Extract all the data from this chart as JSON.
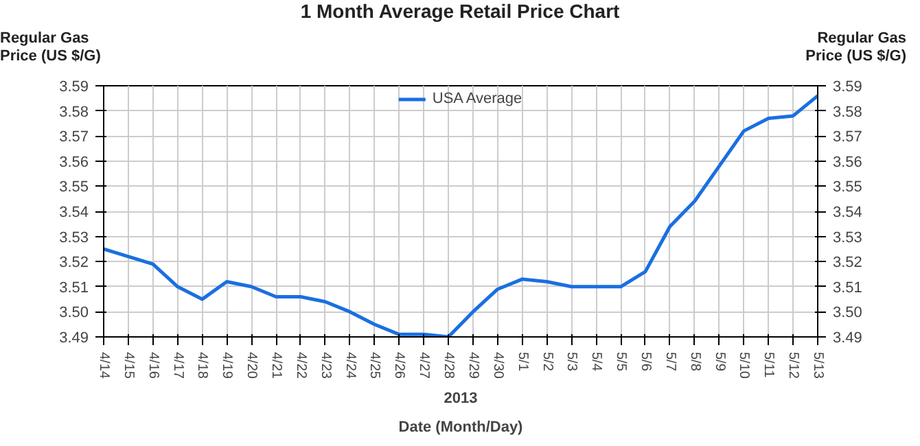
{
  "chart_data": {
    "type": "line",
    "title": "1 Month Average Retail Price Chart",
    "xlabel": "Date (Month/Day)",
    "ylabel": "Regular Gas\nPrice (US $/G)",
    "y2label": "Regular Gas\nPrice (US $/G)",
    "annotations": [
      "2013"
    ],
    "categories": [
      "4/14",
      "4/15",
      "4/16",
      "4/17",
      "4/18",
      "4/19",
      "4/20",
      "4/21",
      "4/22",
      "4/23",
      "4/24",
      "4/25",
      "4/26",
      "4/27",
      "4/28",
      "4/29",
      "4/30",
      "5/1",
      "5/2",
      "5/3",
      "5/4",
      "5/5",
      "5/6",
      "5/7",
      "5/8",
      "5/9",
      "5/10",
      "5/11",
      "5/12",
      "5/13"
    ],
    "series": [
      {
        "name": "USA Average",
        "color": "#1a6fe0",
        "values": [
          3.525,
          3.522,
          3.519,
          3.51,
          3.505,
          3.512,
          3.51,
          3.506,
          3.506,
          3.504,
          3.5,
          3.495,
          3.491,
          3.491,
          3.49,
          3.5,
          3.509,
          3.513,
          3.512,
          3.51,
          3.51,
          3.51,
          3.516,
          3.534,
          3.544,
          3.558,
          3.572,
          3.577,
          3.578,
          3.586
        ]
      }
    ],
    "ylim": [
      3.49,
      3.59
    ],
    "yticks": [
      3.49,
      {
        "value": 3.5,
        "label": "3.50"
      },
      3.51,
      3.52,
      3.53,
      3.54,
      3.55,
      3.56,
      3.57,
      3.58,
      3.59
    ],
    "y2lim": [
      3.49,
      3.59
    ],
    "y2ticks": [
      3.49,
      {
        "value": 3.5,
        "label": "3.50"
      },
      3.51,
      3.52,
      3.53,
      3.54,
      3.55,
      3.56,
      3.57,
      3.58,
      3.59
    ],
    "grid": true,
    "legend": "top",
    "marker": "none",
    "line_style": "solid"
  }
}
